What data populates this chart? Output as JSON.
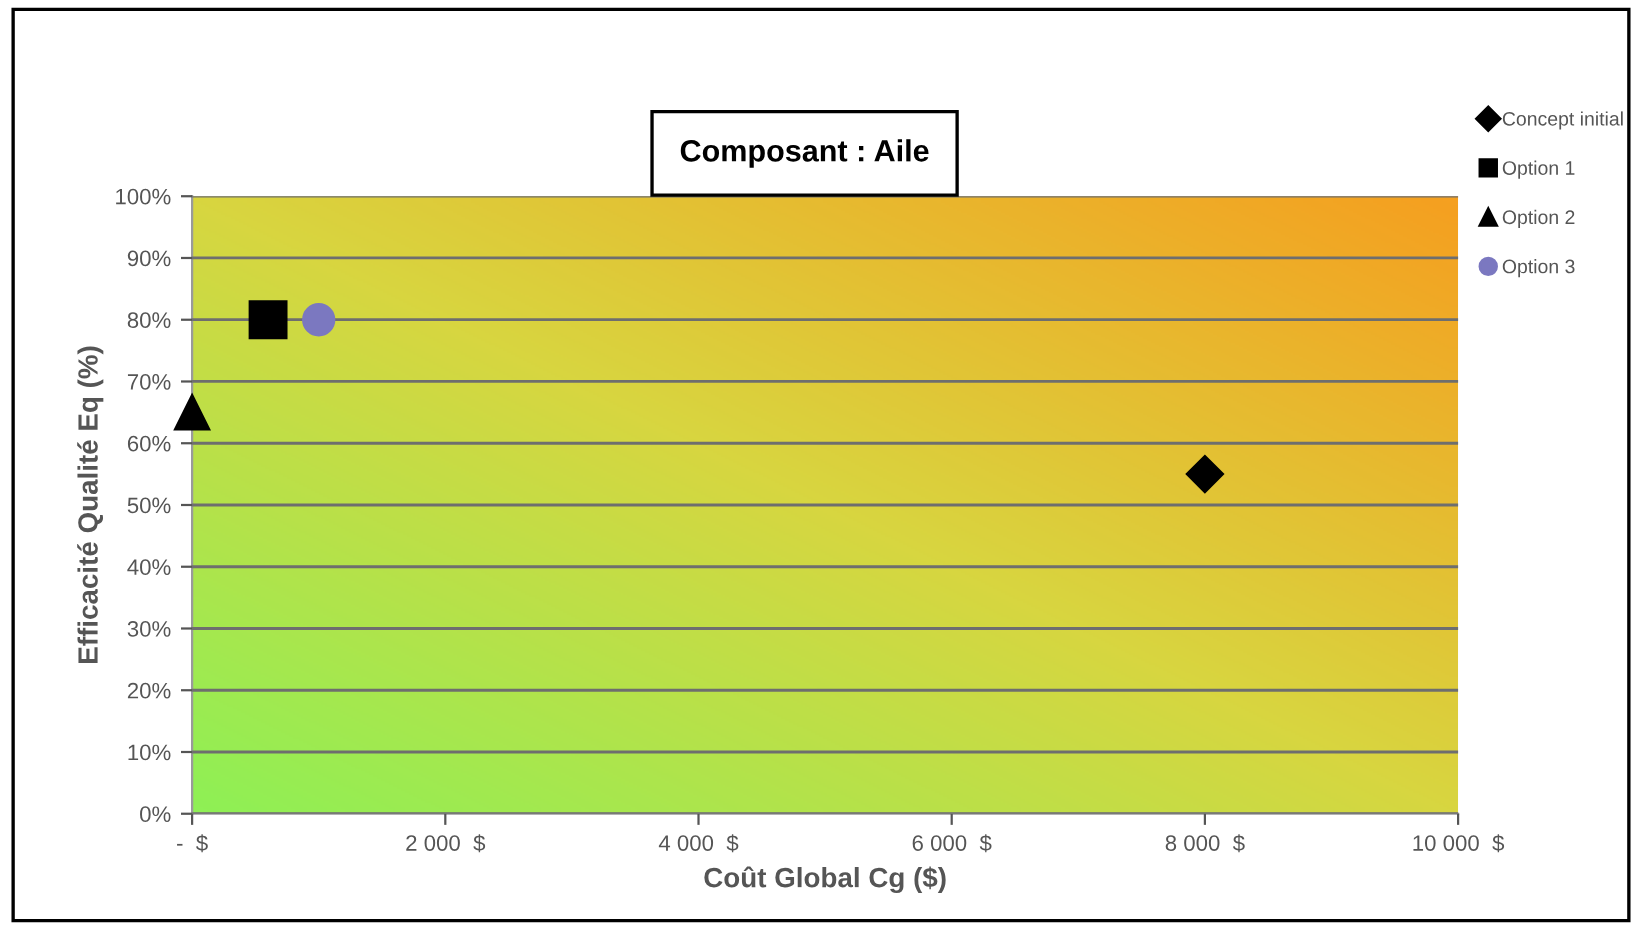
{
  "chart_data": {
    "type": "scatter",
    "title": "Composant : Aile",
    "xlabel": "Coût Global Cg ($)",
    "ylabel": "Efficacité Qualité Eq (%)",
    "xlim": [
      0,
      10000
    ],
    "xticks": [
      {
        "value": 0,
        "label": "-  $"
      },
      {
        "value": 2000,
        "label": "2 000  $"
      },
      {
        "value": 4000,
        "label": "4 000  $"
      },
      {
        "value": 6000,
        "label": "6 000  $"
      },
      {
        "value": 8000,
        "label": "8 000  $"
      },
      {
        "value": 10000,
        "label": "10 000  $"
      }
    ],
    "ylim": [
      0,
      100
    ],
    "yticks": [
      {
        "value": 0,
        "label": "0%"
      },
      {
        "value": 10,
        "label": "10%"
      },
      {
        "value": 20,
        "label": "20%"
      },
      {
        "value": 30,
        "label": "30%"
      },
      {
        "value": 40,
        "label": "40%"
      },
      {
        "value": 50,
        "label": "50%"
      },
      {
        "value": 60,
        "label": "60%"
      },
      {
        "value": 70,
        "label": "70%"
      },
      {
        "value": 80,
        "label": "80%"
      },
      {
        "value": 90,
        "label": "90%"
      },
      {
        "value": 100,
        "label": "100%"
      }
    ],
    "grid": "y",
    "legend": "right",
    "series": [
      {
        "name": "Concept initial",
        "color": "#000000",
        "marker": "diamond",
        "x": [
          8000
        ],
        "values": [
          55
        ]
      },
      {
        "name": "Option 1",
        "color": "#000000",
        "marker": "square",
        "x": [
          600
        ],
        "values": [
          80
        ]
      },
      {
        "name": "Option 2",
        "color": "#000000",
        "marker": "triangle",
        "x": [
          0
        ],
        "values": [
          65
        ]
      },
      {
        "name": "Option 3",
        "color": "#7b78c0",
        "marker": "circle",
        "x": [
          1000
        ],
        "values": [
          80
        ]
      }
    ]
  }
}
